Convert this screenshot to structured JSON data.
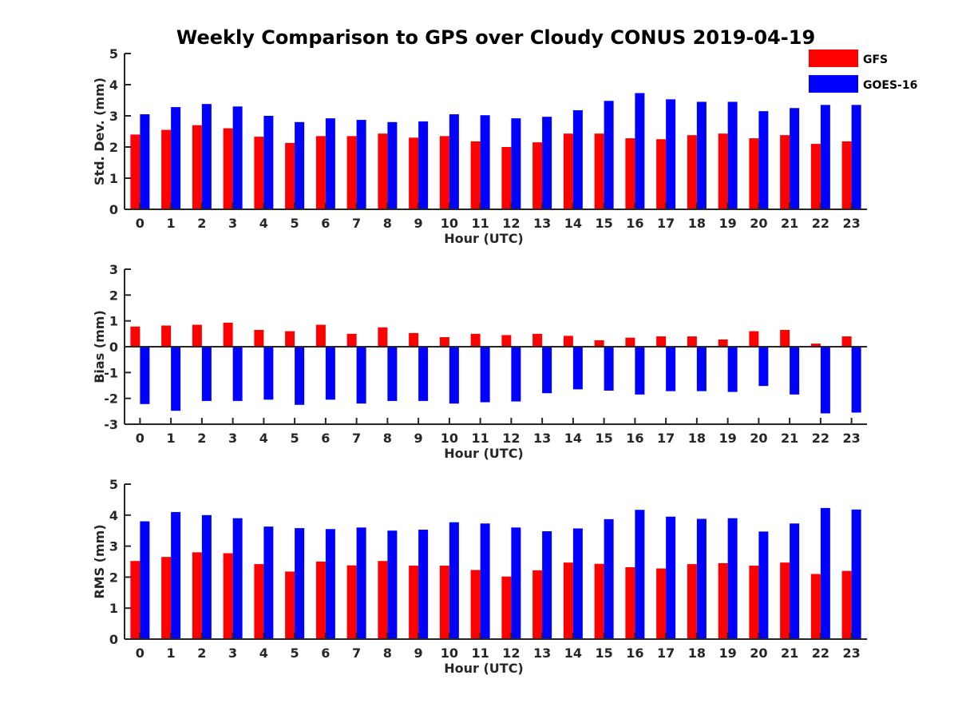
{
  "title": "Weekly Comparison to GPS over Cloudy CONUS 2019-04-19",
  "legend": {
    "entries": [
      "GFS",
      "GOES-16"
    ],
    "placement": "top-right"
  },
  "colors": {
    "GFS": "#ff0000",
    "GOES-16": "#0000ff",
    "axis": "#262626"
  },
  "chart_data": [
    {
      "type": "bar",
      "xlabel": "Hour (UTC)",
      "ylabel": "Std. Dev. (mm)",
      "ylim": [
        0,
        5
      ],
      "yticks": [
        "0",
        "1",
        "2",
        "3",
        "4",
        "5"
      ],
      "categories": [
        "0",
        "1",
        "2",
        "3",
        "4",
        "5",
        "6",
        "7",
        "8",
        "9",
        "10",
        "11",
        "12",
        "13",
        "14",
        "15",
        "16",
        "17",
        "18",
        "19",
        "20",
        "21",
        "22",
        "23"
      ],
      "series": [
        {
          "name": "GFS",
          "values": [
            2.4,
            2.55,
            2.7,
            2.6,
            2.33,
            2.13,
            2.35,
            2.35,
            2.43,
            2.3,
            2.35,
            2.18,
            2.0,
            2.15,
            2.43,
            2.43,
            2.28,
            2.25,
            2.38,
            2.43,
            2.28,
            2.38,
            2.1,
            2.18
          ]
        },
        {
          "name": "GOES-16",
          "values": [
            3.05,
            3.28,
            3.38,
            3.3,
            3.0,
            2.8,
            2.92,
            2.87,
            2.8,
            2.82,
            3.05,
            3.02,
            2.92,
            2.97,
            3.18,
            3.48,
            3.73,
            3.53,
            3.45,
            3.45,
            3.15,
            3.25,
            3.35,
            3.35
          ]
        }
      ]
    },
    {
      "type": "bar",
      "xlabel": "Hour (UTC)",
      "ylabel": "Bias (mm)",
      "ylim": [
        -3,
        3
      ],
      "yticks": [
        "-3",
        "-2",
        "-1",
        "0",
        "1",
        "2",
        "3"
      ],
      "categories": [
        "0",
        "1",
        "2",
        "3",
        "4",
        "5",
        "6",
        "7",
        "8",
        "9",
        "10",
        "11",
        "12",
        "13",
        "14",
        "15",
        "16",
        "17",
        "18",
        "19",
        "20",
        "21",
        "22",
        "23"
      ],
      "series": [
        {
          "name": "GFS",
          "values": [
            0.78,
            0.82,
            0.85,
            0.93,
            0.65,
            0.6,
            0.85,
            0.5,
            0.75,
            0.53,
            0.37,
            0.5,
            0.45,
            0.5,
            0.42,
            0.25,
            0.35,
            0.4,
            0.4,
            0.28,
            0.6,
            0.65,
            0.12,
            0.4
          ]
        },
        {
          "name": "GOES-16",
          "values": [
            -2.22,
            -2.48,
            -2.1,
            -2.1,
            -2.05,
            -2.25,
            -2.05,
            -2.2,
            -2.1,
            -2.1,
            -2.2,
            -2.15,
            -2.12,
            -1.8,
            -1.65,
            -1.7,
            -1.85,
            -1.72,
            -1.72,
            -1.75,
            -1.52,
            -1.85,
            -2.58,
            -2.55
          ]
        }
      ]
    },
    {
      "type": "bar",
      "xlabel": "Hour (UTC)",
      "ylabel": "RMS (mm)",
      "ylim": [
        0,
        5
      ],
      "yticks": [
        "0",
        "1",
        "2",
        "3",
        "4",
        "5"
      ],
      "categories": [
        "0",
        "1",
        "2",
        "3",
        "4",
        "5",
        "6",
        "7",
        "8",
        "9",
        "10",
        "11",
        "12",
        "13",
        "14",
        "15",
        "16",
        "17",
        "18",
        "19",
        "20",
        "21",
        "22",
        "23"
      ],
      "series": [
        {
          "name": "GFS",
          "values": [
            2.52,
            2.65,
            2.8,
            2.77,
            2.42,
            2.18,
            2.5,
            2.38,
            2.52,
            2.37,
            2.37,
            2.23,
            2.02,
            2.22,
            2.47,
            2.43,
            2.32,
            2.28,
            2.42,
            2.45,
            2.37,
            2.47,
            2.1,
            2.2
          ]
        },
        {
          "name": "GOES-16",
          "values": [
            3.8,
            4.1,
            4.0,
            3.9,
            3.63,
            3.58,
            3.55,
            3.6,
            3.5,
            3.53,
            3.77,
            3.73,
            3.6,
            3.48,
            3.57,
            3.87,
            4.17,
            3.95,
            3.88,
            3.9,
            3.47,
            3.73,
            4.23,
            4.18
          ]
        }
      ]
    }
  ]
}
